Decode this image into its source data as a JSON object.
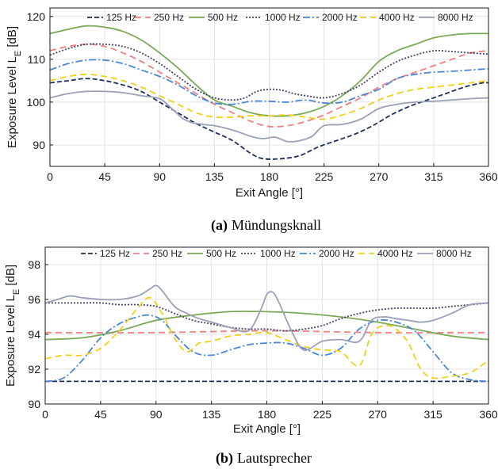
{
  "chart_data": [
    {
      "type": "line",
      "caption_prefix": "(a)",
      "caption_text": "Mündungsknall",
      "xlabel": "Exit Angle [°]",
      "ylabel_main": "Exposure Level L",
      "ylabel_sub": "E",
      "ylabel_unit": " [dB]",
      "xlim": [
        0,
        360
      ],
      "ylim": [
        85,
        122
      ],
      "xticks": [
        0,
        45,
        90,
        135,
        180,
        225,
        270,
        315,
        360
      ],
      "yticks": [
        90,
        100,
        110,
        120
      ],
      "grid": true,
      "legend_position": "top",
      "series": [
        {
          "name": "125 Hz",
          "color": "#1f2f5a",
          "dash": "6,3",
          "x": [
            0,
            15,
            30,
            45,
            60,
            75,
            90,
            105,
            120,
            135,
            150,
            165,
            175,
            190,
            205,
            220,
            235,
            250,
            265,
            280,
            295,
            310,
            325,
            340,
            355,
            360
          ],
          "y": [
            104.5,
            105,
            105.5,
            105,
            104,
            102.5,
            100,
            97.5,
            95,
            93,
            91,
            88,
            86.8,
            86.8,
            87.5,
            89.5,
            91,
            92.5,
            94.5,
            97,
            99,
            100.5,
            102,
            103.5,
            104.5,
            104.5
          ]
        },
        {
          "name": "250 Hz",
          "color": "#f08080",
          "dash": "8,5",
          "x": [
            0,
            15,
            30,
            45,
            60,
            75,
            90,
            105,
            120,
            135,
            150,
            165,
            180,
            195,
            210,
            225,
            240,
            255,
            270,
            285,
            300,
            315,
            330,
            345,
            360
          ],
          "y": [
            112,
            113,
            113.5,
            113,
            111.5,
            109.5,
            107,
            104.5,
            102,
            99.5,
            97.5,
            95.5,
            94.3,
            94.5,
            95.5,
            97,
            99,
            101,
            103.5,
            105.5,
            107,
            108.5,
            110,
            111.5,
            112
          ]
        },
        {
          "name": "500 Hz",
          "color": "#7aaa55",
          "dash": "",
          "x": [
            0,
            15,
            30,
            45,
            60,
            75,
            90,
            105,
            120,
            135,
            150,
            165,
            180,
            195,
            210,
            225,
            240,
            255,
            270,
            285,
            300,
            315,
            330,
            345,
            360
          ],
          "y": [
            116,
            117,
            117.8,
            117.5,
            116.5,
            114.5,
            111.5,
            108,
            104,
            100.5,
            99,
            97.5,
            96.8,
            96.8,
            97.5,
            99,
            101.5,
            105,
            109.5,
            112,
            113.5,
            115,
            115.7,
            116,
            116
          ]
        },
        {
          "name": "1000 Hz",
          "color": "#444466",
          "dash": "2,2",
          "x": [
            0,
            15,
            30,
            45,
            60,
            75,
            90,
            105,
            120,
            135,
            150,
            160,
            170,
            180,
            190,
            200,
            210,
            225,
            240,
            255,
            270,
            285,
            300,
            315,
            330,
            345,
            360
          ],
          "y": [
            111,
            112.5,
            113.5,
            113.5,
            113,
            111.5,
            109,
            106,
            103,
            101,
            100.5,
            101,
            102.5,
            103,
            102.8,
            102,
            101.5,
            101,
            102,
            104,
            107,
            109.5,
            111,
            112,
            111.8,
            111.5,
            111.2
          ]
        },
        {
          "name": "2000 Hz",
          "color": "#4a86d6",
          "dash": "9,3,2,3",
          "x": [
            0,
            15,
            30,
            45,
            60,
            75,
            90,
            105,
            120,
            135,
            150,
            165,
            180,
            195,
            210,
            225,
            240,
            255,
            270,
            285,
            300,
            315,
            330,
            345,
            360
          ],
          "y": [
            107.5,
            109,
            109.8,
            109.8,
            109,
            107.5,
            106,
            104,
            101.5,
            99.8,
            99.5,
            100.2,
            100.2,
            100,
            100.5,
            99.8,
            100,
            101.5,
            103,
            105.5,
            106.5,
            107,
            107.2,
            107.5,
            107.8
          ]
        },
        {
          "name": "4000 Hz",
          "color": "#f2d01a",
          "dash": "8,5",
          "x": [
            0,
            15,
            30,
            45,
            60,
            75,
            90,
            105,
            120,
            135,
            150,
            165,
            180,
            195,
            210,
            225,
            240,
            255,
            270,
            285,
            300,
            315,
            330,
            345,
            360
          ],
          "y": [
            105,
            106,
            106.5,
            106,
            105,
            103.5,
            101.5,
            99.5,
            97.5,
            96.5,
            96.5,
            96.8,
            96.8,
            97,
            96.5,
            96,
            97,
            98.5,
            100.5,
            102,
            103,
            103.5,
            104,
            104.5,
            105
          ]
        },
        {
          "name": "8000 Hz",
          "color": "#9aa0b8",
          "dash": "",
          "x": [
            0,
            15,
            30,
            45,
            60,
            75,
            90,
            100,
            110,
            120,
            135,
            150,
            165,
            175,
            185,
            195,
            205,
            215,
            225,
            240,
            255,
            270,
            285,
            300,
            315,
            330,
            345,
            360
          ],
          "y": [
            101,
            102,
            102.5,
            102.5,
            102.2,
            101.5,
            100.8,
            98.5,
            96,
            95,
            94.5,
            93.5,
            92,
            91.5,
            91.8,
            90.8,
            91,
            92,
            94.5,
            94.8,
            96,
            98.5,
            99.5,
            100,
            100.2,
            100.5,
            100.8,
            101
          ]
        }
      ]
    },
    {
      "type": "line",
      "caption_prefix": "(b)",
      "caption_text": "Lautsprecher",
      "xlabel": "Exit Angle [°]",
      "ylabel_main": "Exposure Level L",
      "ylabel_sub": "E",
      "ylabel_unit": " [dB]",
      "xlim": [
        0,
        360
      ],
      "ylim": [
        90,
        99
      ],
      "xticks": [
        0,
        45,
        90,
        135,
        180,
        225,
        270,
        315,
        360
      ],
      "yticks": [
        90,
        92,
        94,
        96,
        98
      ],
      "grid": true,
      "legend_position": "top",
      "series": [
        {
          "name": "125 Hz",
          "color": "#1f2f5a",
          "dash": "6,3",
          "x": [
            0,
            360
          ],
          "y": [
            91.3,
            91.3
          ]
        },
        {
          "name": "250 Hz",
          "color": "#f08080",
          "dash": "8,5",
          "x": [
            0,
            90,
            180,
            270,
            360
          ],
          "y": [
            94.1,
            94.1,
            94.2,
            94.1,
            94.1
          ]
        },
        {
          "name": "500 Hz",
          "color": "#7aaa55",
          "dash": "",
          "x": [
            0,
            30,
            60,
            90,
            120,
            150,
            180,
            210,
            240,
            270,
            300,
            330,
            360
          ],
          "y": [
            93.7,
            93.8,
            94.2,
            94.8,
            95.1,
            95.3,
            95.3,
            95.2,
            95,
            94.7,
            94.3,
            93.9,
            93.7
          ]
        },
        {
          "name": "1000 Hz",
          "color": "#444466",
          "dash": "2,2",
          "x": [
            0,
            15,
            30,
            45,
            60,
            75,
            90,
            105,
            120,
            135,
            150,
            165,
            180,
            195,
            210,
            225,
            240,
            255,
            270,
            285,
            300,
            315,
            330,
            345,
            360
          ],
          "y": [
            95.8,
            95.8,
            95.8,
            95.8,
            95.7,
            95.7,
            95.6,
            95.2,
            94.8,
            94.6,
            94.4,
            94.3,
            94.3,
            94.2,
            94.3,
            94.5,
            94.9,
            95.2,
            95.4,
            95.5,
            95.5,
            95.5,
            95.6,
            95.7,
            95.8
          ]
        },
        {
          "name": "2000 Hz",
          "color": "#4a86d6",
          "dash": "9,3,2,3",
          "x": [
            0,
            15,
            30,
            45,
            60,
            75,
            85,
            95,
            105,
            120,
            135,
            150,
            165,
            180,
            195,
            210,
            225,
            240,
            255,
            270,
            285,
            300,
            315,
            330,
            345,
            360
          ],
          "y": [
            91.3,
            91.5,
            92.5,
            93.8,
            94.6,
            95,
            95.1,
            94.8,
            94,
            93,
            92.8,
            93.1,
            93.4,
            93.5,
            93.5,
            93.2,
            92.8,
            93.2,
            94.3,
            94.8,
            94.7,
            94.2,
            93,
            91.8,
            91.4,
            91.3
          ]
        },
        {
          "name": "4000 Hz",
          "color": "#f2d01a",
          "dash": "8,5",
          "x": [
            0,
            15,
            30,
            45,
            60,
            75,
            85,
            95,
            105,
            115,
            125,
            135,
            150,
            165,
            180,
            195,
            210,
            225,
            240,
            255,
            265,
            275,
            285,
            295,
            305,
            315,
            330,
            345,
            360
          ],
          "y": [
            92.6,
            92.8,
            92.8,
            93.2,
            94.2,
            95.5,
            96.1,
            95.2,
            93.8,
            93,
            93.5,
            93.6,
            93.9,
            94,
            94.1,
            93.7,
            93.3,
            93.1,
            93,
            92.2,
            94,
            94.5,
            94.3,
            93.5,
            92,
            91.5,
            91.6,
            91.8,
            92.5
          ]
        },
        {
          "name": "8000 Hz",
          "color": "#9aa0b8",
          "dash": "",
          "x": [
            0,
            10,
            20,
            30,
            45,
            60,
            75,
            85,
            90,
            95,
            105,
            115,
            125,
            135,
            150,
            165,
            175,
            180,
            185,
            190,
            200,
            210,
            225,
            240,
            255,
            265,
            275,
            285,
            295,
            305,
            315,
            330,
            345,
            360
          ],
          "y": [
            95.8,
            96,
            96.2,
            96.1,
            96,
            96,
            96.2,
            96.6,
            96.8,
            96.5,
            95.6,
            95.2,
            94.9,
            94.7,
            94.4,
            94.2,
            95.4,
            96.3,
            96.4,
            95.8,
            94.2,
            93.1,
            93.6,
            93.7,
            93.6,
            94.8,
            95,
            94.9,
            94.8,
            94.7,
            94.8,
            95.2,
            95.7,
            95.8
          ]
        }
      ]
    }
  ]
}
